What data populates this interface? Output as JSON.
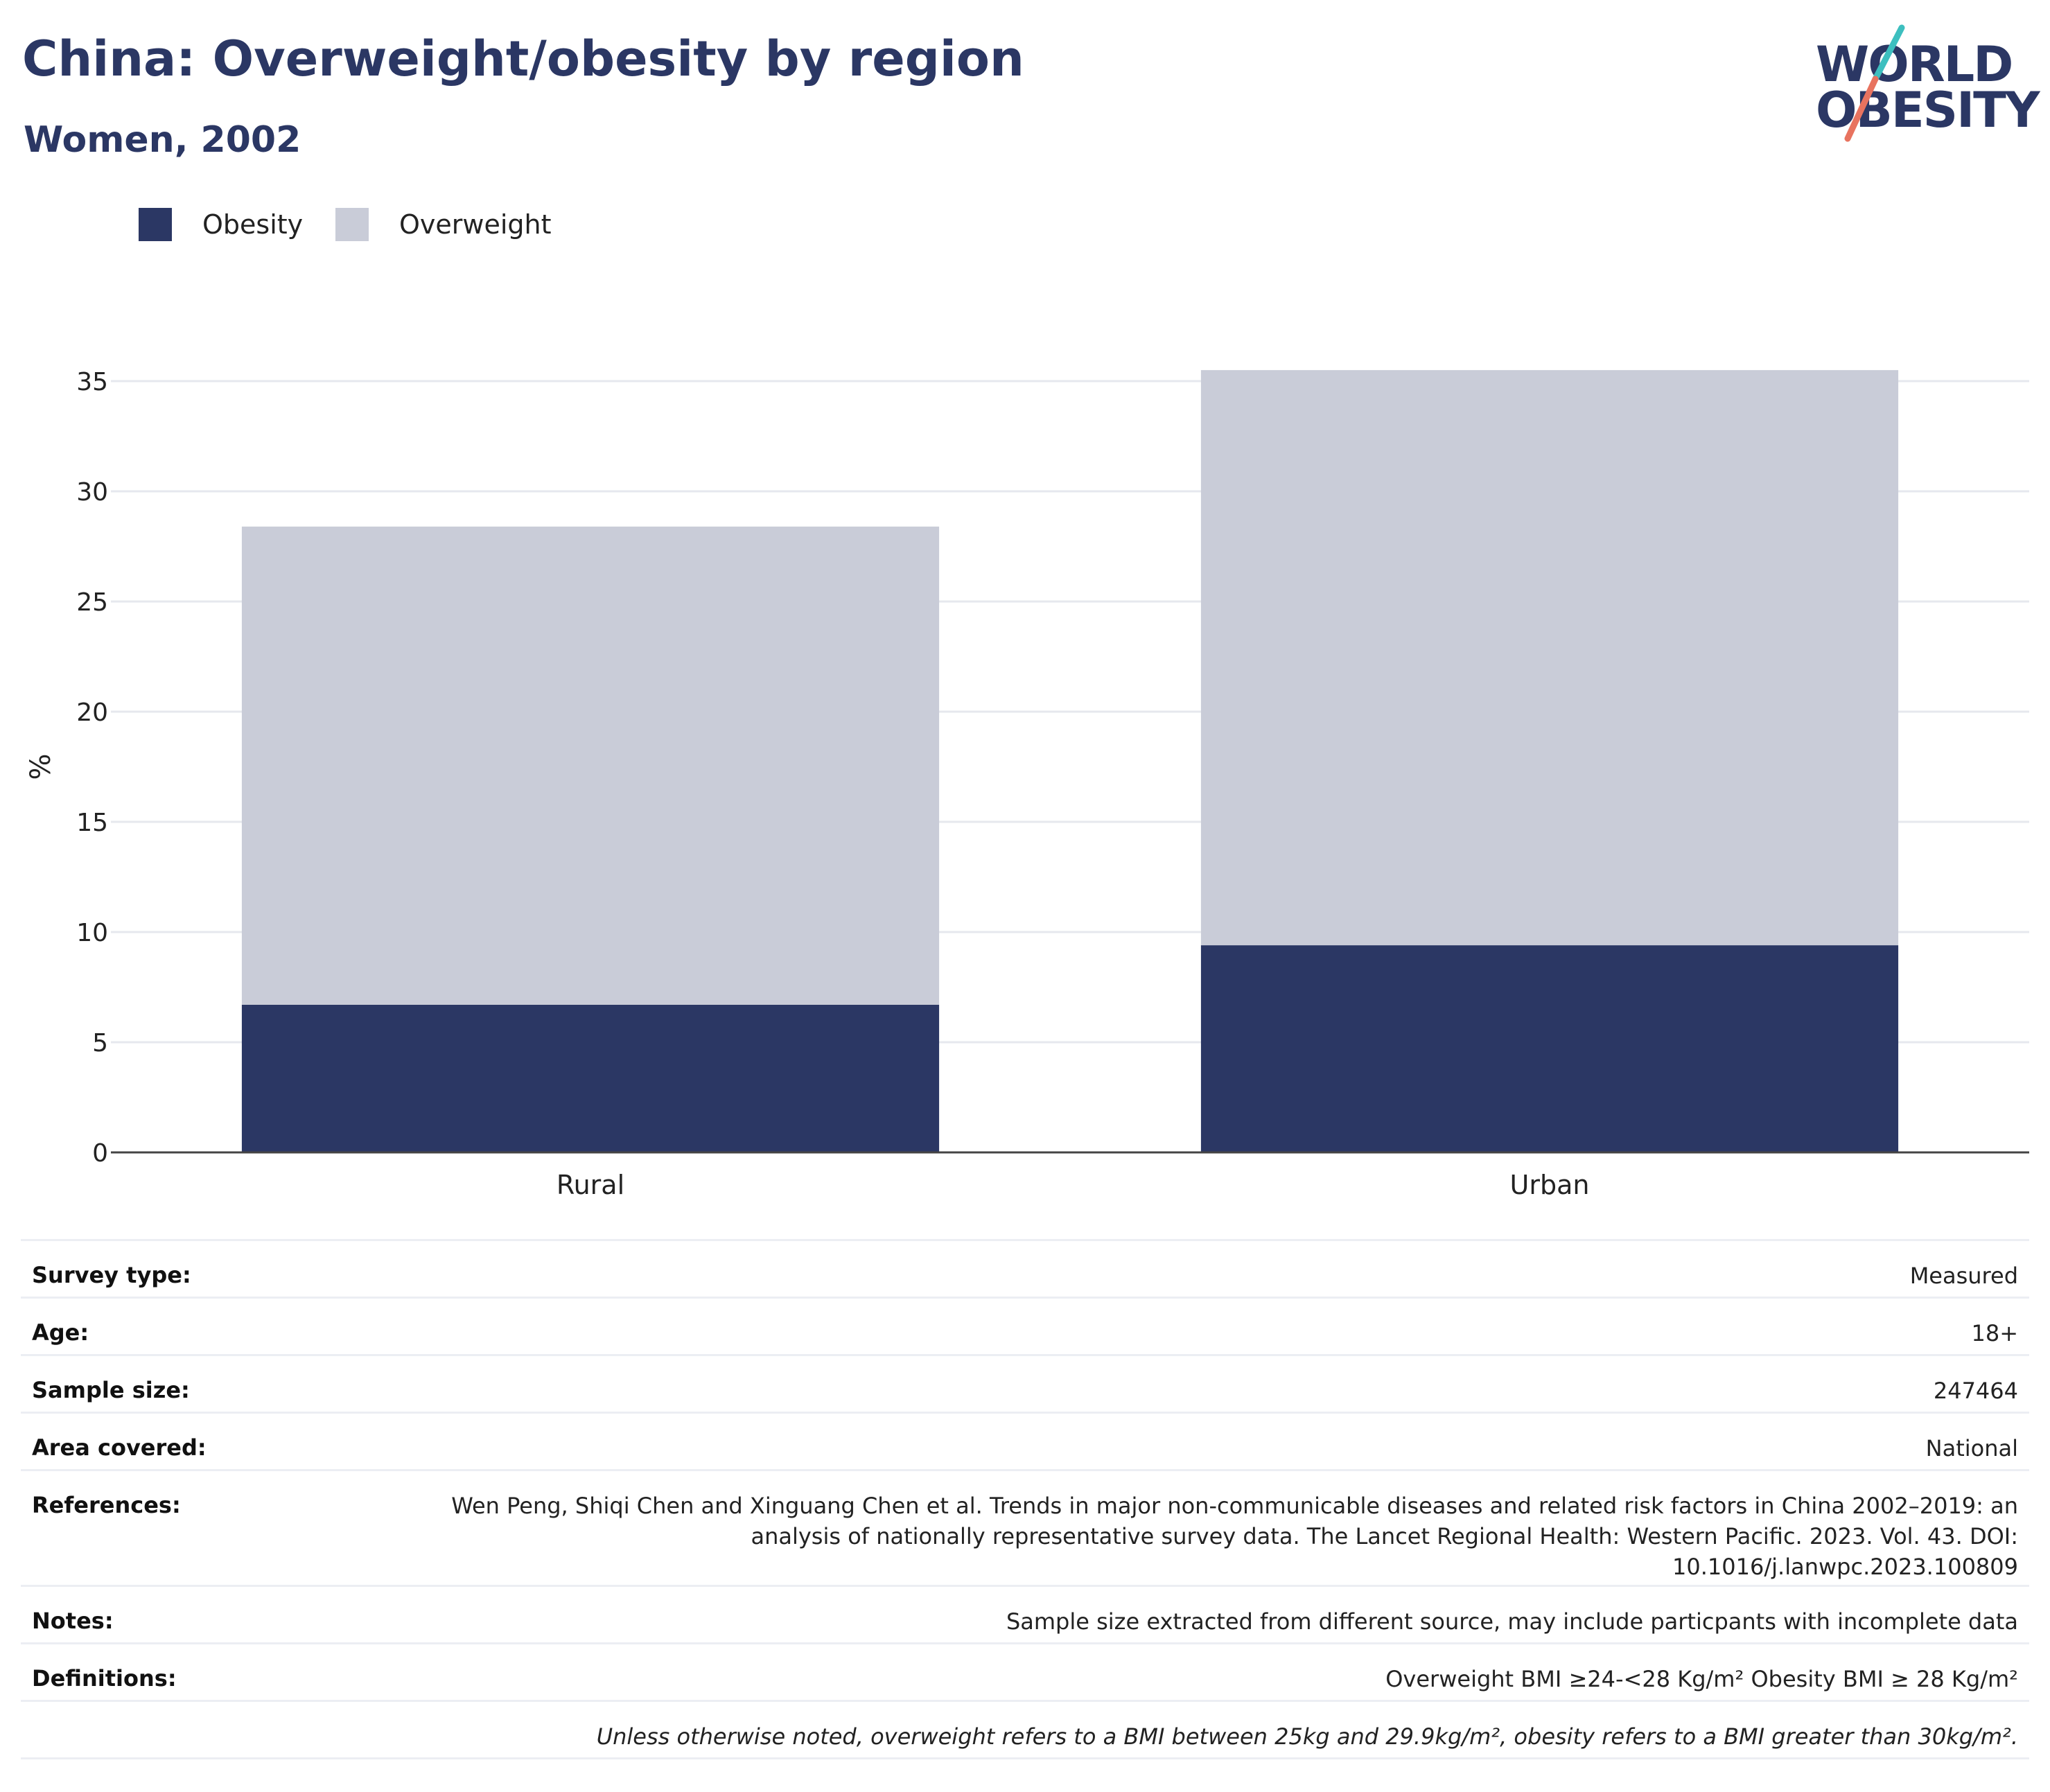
{
  "header": {
    "title": "China: Overweight/obesity by region",
    "subtitle": "Women, 2002"
  },
  "logo": {
    "line1": "WORLD",
    "line2": "OBESITY",
    "colors": {
      "text": "#2b3764",
      "slash_top": "#3dbfbf",
      "slash_bottom": "#e8735f"
    }
  },
  "legend": [
    {
      "label": "Obesity",
      "color": "#2b3764"
    },
    {
      "label": "Overweight",
      "color": "#c9ccd8"
    }
  ],
  "chart_data": {
    "type": "bar",
    "stacked": true,
    "categories": [
      "Rural",
      "Urban"
    ],
    "series": [
      {
        "name": "Obesity",
        "color": "#2b3764",
        "values": [
          6.7,
          9.4
        ]
      },
      {
        "name": "Overweight",
        "color": "#c9ccd8",
        "values": [
          21.7,
          26.1
        ]
      }
    ],
    "title": "China: Overweight/obesity by region",
    "subtitle": "Women, 2002",
    "xlabel": "",
    "ylabel": "%",
    "ylim": [
      0,
      35
    ],
    "yticks": [
      0,
      5,
      10,
      15,
      20,
      25,
      30,
      35
    ],
    "grid": true,
    "legend_position": "top-left"
  },
  "info": {
    "rows": [
      {
        "label": "Survey type:",
        "value": "Measured"
      },
      {
        "label": "Age:",
        "value": "18+"
      },
      {
        "label": "Sample size:",
        "value": "247464"
      },
      {
        "label": "Area covered:",
        "value": "National"
      },
      {
        "label": "References:",
        "value": "Wen Peng, Shiqi Chen and Xinguang Chen et al. Trends in major non-communicable diseases and related risk factors in China 2002–2019: an analysis of nationally representative survey data. The Lancet Regional Health: Western Pacific. 2023. Vol. 43. DOI: 10.1016/j.lanwpc.2023.100809"
      },
      {
        "label": "Notes:",
        "value": "Sample size extracted from different source, may include particpants with incomplete data"
      },
      {
        "label": "Definitions:",
        "value": "Overweight BMI ≥24-<28 Kg/m² Obesity BMI ≥ 28 Kg/m²"
      }
    ],
    "footnote": "Unless otherwise noted, overweight refers to a BMI between 25kg and 29.9kg/m², obesity refers to a BMI greater than 30kg/m²."
  }
}
